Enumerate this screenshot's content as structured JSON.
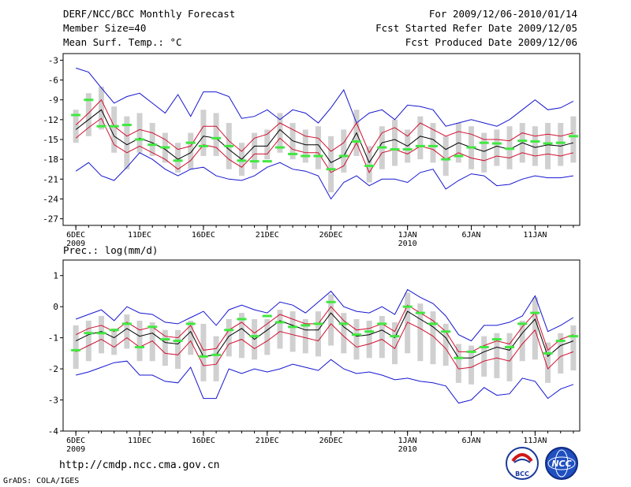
{
  "header": {
    "title": "DERF/NCC/BCC Monthly Forecast",
    "member_size": "Member Size=40",
    "variable": "Mean Surf. Temp.: °C",
    "period": "For 2009/12/06-2010/01/14",
    "fcst_started": "Fcst Started Refer Date 2009/12/05",
    "fcst_produced": "Fcst Produced Date 2009/12/06"
  },
  "panel2_label": "Prec.: log(mm/d)",
  "footer": {
    "url": "http://cmdp.ncc.cma.gov.cn",
    "grads": "GrADS: COLA/IGES",
    "logo_bcc": "BCC",
    "logo_ncc": "NCC"
  },
  "colors": {
    "mean": "#000000",
    "spread": "#d01030",
    "envelope": "#1515d0",
    "box": "#d0d0d0",
    "median": "#40e840"
  },
  "chart_data": [
    {
      "type": "line",
      "title": "Mean Surf. Temp.: °C",
      "ylim": [
        -28,
        -2
      ],
      "yticks": [
        -3,
        -6,
        -9,
        -12,
        -15,
        -18,
        -21,
        -24,
        -27
      ],
      "ytick_labels": [
        "-3",
        "-6",
        "-9",
        "-12",
        "-15",
        "-18",
        "-21",
        "-24",
        "-27"
      ],
      "xticks": [
        {
          "day": 0,
          "label": "6DEC",
          "sub": "2009"
        },
        {
          "day": 5,
          "label": "11DEC",
          "sub": ""
        },
        {
          "day": 10,
          "label": "16DEC",
          "sub": ""
        },
        {
          "day": 15,
          "label": "21DEC",
          "sub": ""
        },
        {
          "day": 20,
          "label": "26DEC",
          "sub": ""
        },
        {
          "day": 26,
          "label": "1JAN",
          "sub": "2010"
        },
        {
          "day": 31,
          "label": "6JAN",
          "sub": ""
        },
        {
          "day": 36,
          "label": "11JAN",
          "sub": ""
        }
      ],
      "xrange": [
        -1,
        39.5
      ],
      "series": [
        {
          "name": "ensemble max",
          "values": [
            -4.2,
            -4.8,
            -7.2,
            -9.5,
            -8.5,
            -8.0,
            -9.5,
            -11.0,
            -8.2,
            -11.5,
            -7.8,
            -7.8,
            -8.5,
            -11.8,
            -11.5,
            -10.5,
            -12.0,
            -10.5,
            -11.0,
            -12.5,
            -10.2,
            -7.5,
            -12.5,
            -11.0,
            -10.5,
            -12.0,
            -9.8,
            -10.0,
            -10.5,
            -13.0,
            -12.5,
            -12.0,
            -12.5,
            -13.0,
            -12.0,
            -10.5,
            -9.0,
            -10.5,
            -10.2,
            -9.2
          ]
        },
        {
          "name": "mean + spread",
          "values": [
            -12.8,
            -11.0,
            -9.0,
            -13.0,
            -14.5,
            -13.5,
            -14.0,
            -15.0,
            -16.5,
            -16.0,
            -13.0,
            -13.0,
            -15.2,
            -16.8,
            -14.8,
            -14.2,
            -12.5,
            -13.5,
            -14.5,
            -14.8,
            -16.8,
            -15.5,
            -12.5,
            -17.0,
            -14.0,
            -13.2,
            -14.5,
            -12.5,
            -13.5,
            -14.5,
            -13.8,
            -14.2,
            -15.0,
            -15.0,
            -15.2,
            -14.0,
            -14.5,
            -14.2,
            -14.5,
            -14.0
          ]
        },
        {
          "name": "ensemble mean",
          "values": [
            -13.5,
            -12.0,
            -10.5,
            -14.5,
            -15.8,
            -14.8,
            -15.5,
            -16.5,
            -18.0,
            -17.0,
            -14.5,
            -14.8,
            -16.5,
            -18.0,
            -16.0,
            -16.0,
            -13.5,
            -15.2,
            -15.8,
            -15.8,
            -18.5,
            -17.5,
            -14.0,
            -18.5,
            -15.5,
            -15.0,
            -16.0,
            -14.5,
            -15.0,
            -16.5,
            -15.5,
            -16.2,
            -16.8,
            -16.0,
            -16.5,
            -15.5,
            -16.2,
            -15.8,
            -16.0,
            -15.5
          ]
        },
        {
          "name": "mean - spread",
          "values": [
            -14.8,
            -13.2,
            -11.8,
            -15.8,
            -17.0,
            -16.0,
            -17.0,
            -18.0,
            -19.5,
            -18.2,
            -15.8,
            -16.2,
            -18.0,
            -19.2,
            -17.2,
            -17.2,
            -14.8,
            -16.5,
            -17.0,
            -17.0,
            -20.0,
            -19.0,
            -15.5,
            -20.0,
            -17.0,
            -16.5,
            -17.2,
            -16.0,
            -16.5,
            -18.0,
            -17.0,
            -17.8,
            -18.2,
            -17.5,
            -17.8,
            -17.0,
            -17.5,
            -17.2,
            -17.5,
            -17.0
          ]
        },
        {
          "name": "ensemble min",
          "values": [
            -19.8,
            -18.5,
            -20.5,
            -21.2,
            -19.2,
            -17.0,
            -18.0,
            -19.5,
            -20.5,
            -19.5,
            -19.2,
            -20.5,
            -21.0,
            -21.2,
            -20.5,
            -19.2,
            -18.5,
            -19.5,
            -19.8,
            -20.5,
            -24.0,
            -21.5,
            -20.5,
            -22.0,
            -21.0,
            -21.0,
            -21.5,
            -20.0,
            -19.5,
            -22.5,
            -21.2,
            -20.2,
            -20.5,
            -22.0,
            -21.8,
            -21.0,
            -20.5,
            -20.8,
            -20.8,
            -20.5
          ]
        },
        {
          "name": "box upper",
          "values": [
            -10.5,
            -8.0,
            -7.0,
            -10.0,
            -11.5,
            -11.0,
            -12.5,
            -14.0,
            -15.5,
            -14.0,
            -10.5,
            -11.0,
            -12.5,
            -15.5,
            -14.0,
            -13.5,
            -11.0,
            -12.5,
            -13.5,
            -13.0,
            -14.5,
            -13.5,
            -10.5,
            -16.0,
            -13.0,
            -12.0,
            -13.5,
            -11.5,
            -12.5,
            -14.5,
            -12.5,
            -13.0,
            -14.0,
            -13.5,
            -13.0,
            -12.5,
            -13.0,
            -12.5,
            -12.5,
            -11.5
          ]
        },
        {
          "name": "box lower",
          "values": [
            -15.5,
            -14.5,
            -13.5,
            -17.0,
            -19.5,
            -17.0,
            -17.5,
            -18.5,
            -20.0,
            -19.5,
            -17.5,
            -17.5,
            -19.5,
            -20.5,
            -19.5,
            -18.0,
            -17.0,
            -18.0,
            -18.5,
            -19.5,
            -23.0,
            -20.0,
            -17.5,
            -21.5,
            -19.5,
            -19.0,
            -18.5,
            -18.0,
            -18.5,
            -20.5,
            -18.5,
            -19.5,
            -20.0,
            -19.0,
            -19.5,
            -18.5,
            -19.0,
            -19.5,
            -19.0,
            -18.5
          ]
        },
        {
          "name": "median",
          "values": [
            -11.3,
            -9.0,
            -13.0,
            -13.0,
            -12.8,
            -15.0,
            -15.8,
            -16.2,
            -18.2,
            -15.5,
            -16.0,
            -14.8,
            -16.0,
            -18.2,
            -18.3,
            -18.3,
            -16.2,
            -17.2,
            -17.5,
            -17.5,
            -19.5,
            -17.5,
            -15.3,
            -19.0,
            -16.2,
            -16.5,
            -16.5,
            -16.0,
            -16.0,
            -18.0,
            -17.5,
            -16.2,
            -15.5,
            -15.6,
            -16.4,
            -15.2,
            -15.3,
            -15.6,
            -15.5,
            -14.5
          ]
        }
      ]
    },
    {
      "type": "line",
      "title": "Prec.: log(mm/d)",
      "ylim": [
        -4,
        1.5
      ],
      "yticks": [
        1,
        0,
        -1,
        -2,
        -3,
        -4
      ],
      "ytick_labels": [
        "1",
        "0",
        "-1",
        "-2",
        "-3",
        "-4"
      ],
      "xticks": [
        {
          "day": 0,
          "label": "6DEC",
          "sub": "2009"
        },
        {
          "day": 5,
          "label": "11DEC",
          "sub": ""
        },
        {
          "day": 10,
          "label": "16DEC",
          "sub": ""
        },
        {
          "day": 15,
          "label": "21DEC",
          "sub": ""
        },
        {
          "day": 20,
          "label": "26DEC",
          "sub": ""
        },
        {
          "day": 26,
          "label": "1JAN",
          "sub": "2010"
        },
        {
          "day": 31,
          "label": "6JAN",
          "sub": ""
        },
        {
          "day": 36,
          "label": "11JAN",
          "sub": ""
        }
      ],
      "xrange": [
        -1,
        39.5
      ],
      "series": [
        {
          "name": "ensemble max",
          "values": [
            -0.4,
            -0.25,
            -0.1,
            -0.45,
            0.0,
            -0.2,
            -0.25,
            -0.5,
            -0.55,
            -0.35,
            -0.15,
            -0.6,
            -0.1,
            0.05,
            -0.1,
            -0.2,
            0.15,
            0.05,
            -0.2,
            0.15,
            0.5,
            0.0,
            -0.15,
            -0.2,
            0.0,
            -0.25,
            0.55,
            0.3,
            0.1,
            -0.3,
            -0.9,
            -1.1,
            -0.6,
            -0.6,
            -0.5,
            -0.3,
            0.35,
            -0.8,
            -0.6,
            -0.35
          ]
        },
        {
          "name": "mean + spread",
          "values": [
            -0.9,
            -0.7,
            -0.6,
            -0.8,
            -0.5,
            -0.75,
            -0.65,
            -0.95,
            -1.0,
            -0.6,
            -1.4,
            -1.35,
            -0.75,
            -0.5,
            -0.85,
            -0.55,
            -0.25,
            -0.4,
            -0.55,
            -0.55,
            0.0,
            -0.45,
            -0.75,
            -0.7,
            -0.55,
            -0.8,
            0.05,
            -0.2,
            -0.45,
            -0.8,
            -1.45,
            -1.45,
            -1.25,
            -1.1,
            -1.2,
            -0.65,
            -0.2,
            -1.4,
            -1.05,
            -0.9
          ]
        },
        {
          "name": "ensemble mean",
          "values": [
            -1.1,
            -0.9,
            -0.8,
            -1.0,
            -0.7,
            -0.95,
            -0.85,
            -1.15,
            -1.2,
            -0.8,
            -1.6,
            -1.55,
            -0.95,
            -0.7,
            -1.05,
            -0.75,
            -0.45,
            -0.6,
            -0.75,
            -0.75,
            -0.2,
            -0.65,
            -0.95,
            -0.9,
            -0.75,
            -1.0,
            -0.15,
            -0.4,
            -0.65,
            -1.0,
            -1.65,
            -1.65,
            -1.45,
            -1.3,
            -1.4,
            -0.85,
            -0.4,
            -1.6,
            -1.25,
            -1.1
          ]
        },
        {
          "name": "mean - spread",
          "values": [
            -1.45,
            -1.25,
            -1.05,
            -1.3,
            -1.0,
            -1.3,
            -1.1,
            -1.5,
            -1.55,
            -1.1,
            -1.9,
            -1.85,
            -1.2,
            -1.05,
            -1.35,
            -1.1,
            -0.8,
            -0.9,
            -1.0,
            -1.1,
            -0.55,
            -0.95,
            -1.3,
            -1.2,
            -1.05,
            -1.35,
            -0.5,
            -0.7,
            -0.95,
            -1.35,
            -2.0,
            -1.95,
            -1.75,
            -1.65,
            -1.75,
            -1.2,
            -0.75,
            -2.0,
            -1.6,
            -1.45
          ]
        },
        {
          "name": "ensemble min",
          "values": [
            -2.2,
            -2.1,
            -1.95,
            -1.8,
            -1.75,
            -2.2,
            -2.2,
            -2.4,
            -2.45,
            -1.95,
            -2.95,
            -2.95,
            -2.0,
            -2.15,
            -2.0,
            -2.1,
            -2.0,
            -1.85,
            -1.95,
            -2.05,
            -1.7,
            -2.0,
            -2.15,
            -2.1,
            -2.2,
            -2.35,
            -2.3,
            -2.4,
            -2.45,
            -2.55,
            -3.1,
            -3.0,
            -2.6,
            -2.85,
            -2.8,
            -2.3,
            -2.4,
            -2.95,
            -2.65,
            -2.5
          ]
        },
        {
          "name": "box upper",
          "values": [
            -0.6,
            -0.45,
            -0.3,
            -0.7,
            -0.25,
            -0.45,
            -0.5,
            -0.75,
            -0.75,
            -0.45,
            -0.55,
            -0.95,
            -0.4,
            -0.2,
            -0.4,
            -0.4,
            -0.1,
            -0.15,
            -0.4,
            -0.15,
            0.4,
            -0.2,
            -0.4,
            -0.45,
            -0.3,
            -0.5,
            0.45,
            0.1,
            -0.15,
            -0.55,
            -1.2,
            -1.25,
            -0.95,
            -0.85,
            -0.85,
            -0.45,
            0.3,
            -1.15,
            -0.85,
            -0.6
          ]
        },
        {
          "name": "box lower",
          "values": [
            -2.0,
            -1.75,
            -1.5,
            -1.55,
            -1.35,
            -1.75,
            -1.75,
            -1.9,
            -2.0,
            -1.55,
            -2.4,
            -2.4,
            -1.6,
            -1.65,
            -1.7,
            -1.55,
            -1.35,
            -1.45,
            -1.5,
            -1.6,
            -1.25,
            -1.5,
            -1.7,
            -1.65,
            -1.65,
            -1.85,
            -1.5,
            -1.75,
            -1.85,
            -1.9,
            -2.45,
            -2.5,
            -2.25,
            -2.3,
            -2.4,
            -1.75,
            -1.7,
            -2.45,
            -2.15,
            -2.05
          ]
        },
        {
          "name": "median",
          "values": [
            -1.4,
            -0.85,
            -0.85,
            -0.75,
            -0.55,
            -1.3,
            -0.65,
            -1.05,
            -1.1,
            -0.55,
            -1.6,
            -1.55,
            -0.75,
            -0.4,
            -0.95,
            -0.3,
            -0.5,
            -0.65,
            -0.6,
            -0.55,
            0.15,
            -0.55,
            -0.9,
            -0.8,
            -0.55,
            -0.95,
            0.0,
            -0.2,
            -0.55,
            -0.8,
            -1.65,
            -1.45,
            -1.3,
            -1.05,
            -1.3,
            -0.55,
            -0.2,
            -1.5,
            -1.1,
            -0.95
          ]
        }
      ]
    }
  ]
}
